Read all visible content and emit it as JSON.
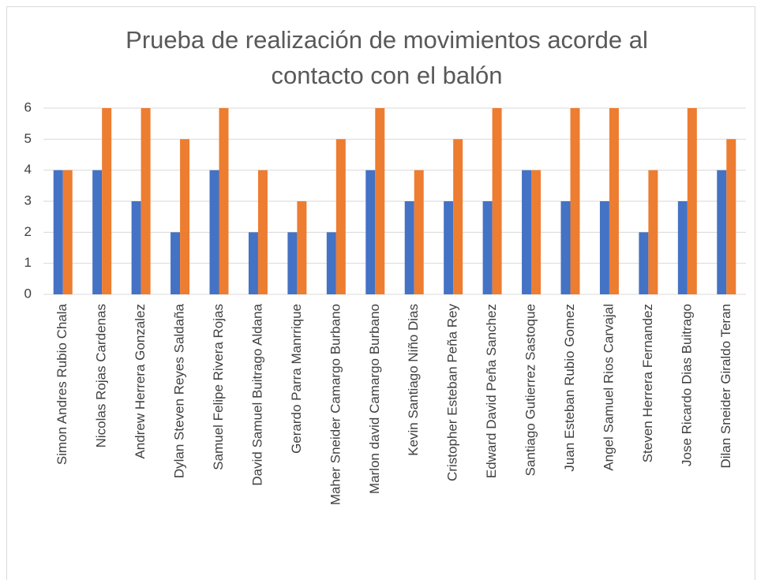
{
  "chart_data": {
    "type": "bar",
    "title": "Prueba de realización de movimientos acorde al contacto con el balón",
    "categories": [
      "Simon Andres Rubio Chala",
      "Nicolas Rojas Cardenas",
      "Andrew Herrera Gonzalez",
      "Dylan Steven Reyes Saldaña",
      "Samuel Felipe Rivera Rojas",
      "David Samuel Buitrago Aldana",
      "Gerardo Parra Manrrique",
      "Maher Sneider Camargo Burbano",
      "Marlon david Camargo Burbano",
      "Kevin Santiago Niño Dias",
      "Cristopher Esteban Peña Rey",
      "Edward David Peña Sanchez",
      "Santiago Gutierrez Sastoque",
      "Juan Esteban Rubio Gomez",
      "Angel Samuel Rios Carvajal",
      "Steven Herrera Fernandez",
      "Jose Ricardo Dias Buitrago",
      "Dilan Sneider Giraldo Teran"
    ],
    "series": [
      {
        "color": "#4472c4",
        "values": [
          4,
          4,
          3,
          2,
          4,
          2,
          2,
          2,
          4,
          3,
          3,
          3,
          4,
          3,
          3,
          2,
          3,
          4
        ]
      },
      {
        "color": "#ed7d31",
        "values": [
          4,
          6,
          6,
          5,
          6,
          4,
          3,
          5,
          6,
          4,
          5,
          6,
          4,
          6,
          6,
          4,
          6,
          5
        ]
      }
    ],
    "ylim": [
      0,
      6
    ],
    "yticks": [
      0,
      1,
      2,
      3,
      4,
      5,
      6
    ],
    "grid": true
  }
}
